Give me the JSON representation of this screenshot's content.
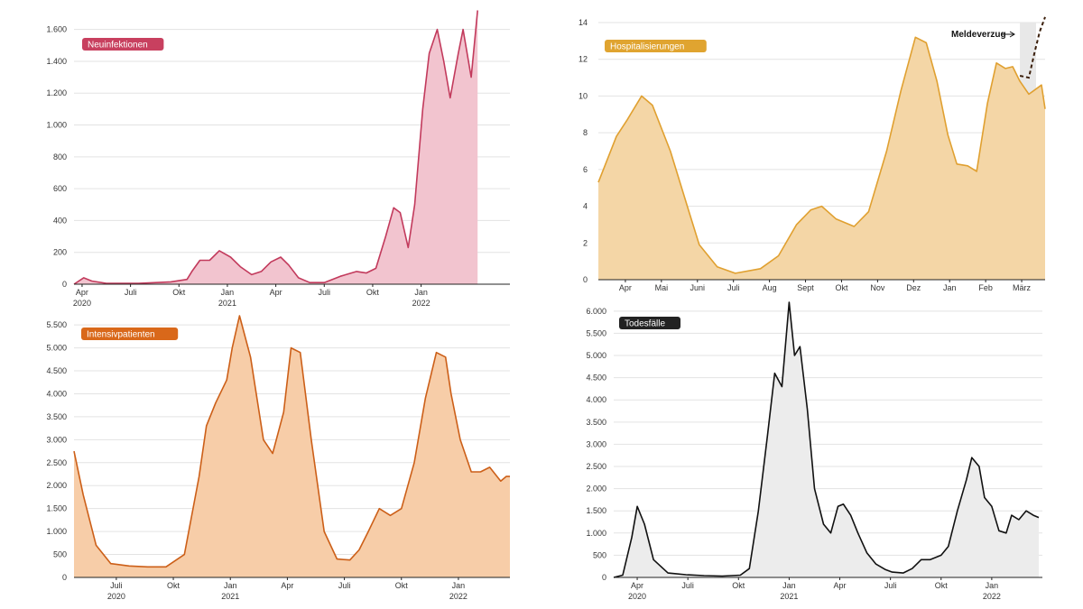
{
  "chart_data": [
    {
      "id": "neuinfektionen",
      "type": "area",
      "title": "Neuinfektionen",
      "label_bg": "#c8405f",
      "line_color": "#c23a5c",
      "fill_color": "#f2c4cf",
      "ylim": [
        0,
        1700
      ],
      "xlim": [
        0,
        27
      ],
      "yticks": [
        0,
        200,
        400,
        600,
        800,
        1000,
        1200,
        1400,
        1600
      ],
      "ytick_labels": [
        "0",
        "200",
        "400",
        "600",
        "800",
        "1.000",
        "1.200",
        "1.400",
        "1.600"
      ],
      "xticks": [
        {
          "x": 0.5,
          "label": "Apr",
          "sub": "2020"
        },
        {
          "x": 3.5,
          "label": "Juli",
          "sub": ""
        },
        {
          "x": 6.5,
          "label": "Okt",
          "sub": ""
        },
        {
          "x": 9.5,
          "label": "Jan",
          "sub": "2021"
        },
        {
          "x": 12.5,
          "label": "Apr",
          "sub": ""
        },
        {
          "x": 15.5,
          "label": "Juli",
          "sub": ""
        },
        {
          "x": 18.5,
          "label": "Okt",
          "sub": ""
        },
        {
          "x": 21.5,
          "label": "Jan",
          "sub": "2022"
        }
      ],
      "x": [
        0,
        0.6,
        1.1,
        2,
        4,
        6,
        7,
        7.3,
        7.8,
        8.4,
        9,
        9.7,
        10.3,
        11,
        11.6,
        12.2,
        12.8,
        13.3,
        13.9,
        14.6,
        15.5,
        16.5,
        17.5,
        18.1,
        18.7,
        19.3,
        19.8,
        20.2,
        20.7,
        21.1,
        21.6,
        22,
        22.5,
        22.9,
        23.3,
        23.8,
        24.1,
        24.6,
        25
      ],
      "y": [
        0,
        40,
        20,
        5,
        5,
        15,
        30,
        80,
        150,
        150,
        210,
        170,
        110,
        60,
        80,
        140,
        170,
        120,
        40,
        10,
        10,
        50,
        80,
        70,
        100,
        300,
        480,
        450,
        230,
        500,
        1100,
        1450,
        1600,
        1400,
        1170,
        1450,
        1600,
        1300,
        1720
      ],
      "annotation": ""
    },
    {
      "id": "hospitalisierungen",
      "type": "area",
      "title": "Hospitalisierungen",
      "label_bg": "#e0a430",
      "line_color": "#e0a030",
      "fill_color": "#f4d6a6",
      "ylim": [
        0,
        14
      ],
      "xlim": [
        0,
        12.4
      ],
      "yticks": [
        0,
        2,
        4,
        6,
        8,
        10,
        12,
        14
      ],
      "ytick_labels": [
        "0",
        "2",
        "4",
        "6",
        "8",
        "10",
        "12",
        "14"
      ],
      "xticks": [
        {
          "x": 0.75,
          "label": "Apr",
          "sub": ""
        },
        {
          "x": 1.75,
          "label": "Mai",
          "sub": ""
        },
        {
          "x": 2.75,
          "label": "Juni",
          "sub": ""
        },
        {
          "x": 3.75,
          "label": "Juli",
          "sub": ""
        },
        {
          "x": 4.75,
          "label": "Aug",
          "sub": ""
        },
        {
          "x": 5.75,
          "label": "Sept",
          "sub": ""
        },
        {
          "x": 6.75,
          "label": "Okt",
          "sub": ""
        },
        {
          "x": 7.75,
          "label": "Nov",
          "sub": ""
        },
        {
          "x": 8.75,
          "label": "Dez",
          "sub": ""
        },
        {
          "x": 9.75,
          "label": "Jan",
          "sub": ""
        },
        {
          "x": 10.75,
          "label": "Feb",
          "sub": ""
        },
        {
          "x": 11.75,
          "label": "März",
          "sub": ""
        }
      ],
      "x": [
        0,
        0.5,
        0.8,
        1.2,
        1.5,
        2,
        2.5,
        2.8,
        3.3,
        3.8,
        4.5,
        5,
        5.5,
        5.9,
        6.2,
        6.6,
        7.1,
        7.5,
        8,
        8.4,
        8.8,
        9.1,
        9.4,
        9.7,
        9.95,
        10.25,
        10.5,
        10.8,
        11.05,
        11.3,
        11.5,
        11.7,
        11.95,
        12.3,
        12.4
      ],
      "y": [
        5.3,
        7.8,
        8.7,
        10,
        9.5,
        7,
        3.8,
        1.9,
        0.7,
        0.35,
        0.6,
        1.3,
        3,
        3.8,
        4,
        3.3,
        2.9,
        3.7,
        7,
        10.3,
        13.2,
        12.9,
        10.8,
        7.9,
        6.3,
        6.2,
        5.9,
        9.6,
        11.8,
        11.5,
        11.6,
        10.8,
        10.1,
        10.6,
        9.3
      ],
      "delay_x": [
        11.7,
        11.95,
        12.1,
        12.25,
        12.4
      ],
      "delay_y": [
        11.1,
        11.0,
        12.3,
        13.5,
        14.3
      ],
      "shade_from_x": 11.7,
      "annotation": "Meldeverzug"
    },
    {
      "id": "intensivpatienten",
      "type": "area",
      "title": "Intensivpatienten",
      "label_bg": "#d9681a",
      "line_color": "#cc5f18",
      "fill_color": "#f7cda8",
      "ylim": [
        0,
        5700
      ],
      "xlim": [
        0,
        23.7
      ],
      "yticks": [
        0,
        500,
        1000,
        1500,
        2000,
        2500,
        3000,
        3500,
        4000,
        4500,
        5000,
        5500
      ],
      "ytick_labels": [
        "0",
        "500",
        "1.000",
        "1.500",
        "2.000",
        "2.500",
        "3.000",
        "3.500",
        "4.000",
        "4.500",
        "5.000",
        "5.500"
      ],
      "xticks": [
        {
          "x": 2.3,
          "label": "Juli",
          "sub": "2020"
        },
        {
          "x": 5.4,
          "label": "Okt",
          "sub": ""
        },
        {
          "x": 8.5,
          "label": "Jan",
          "sub": "2021"
        },
        {
          "x": 11.6,
          "label": "Apr",
          "sub": ""
        },
        {
          "x": 14.7,
          "label": "Juli",
          "sub": ""
        },
        {
          "x": 17.8,
          "label": "Okt",
          "sub": ""
        },
        {
          "x": 20.9,
          "label": "Jan",
          "sub": "2022"
        }
      ],
      "x": [
        0,
        0.5,
        1.2,
        2,
        3,
        4,
        5,
        6,
        6.8,
        7.2,
        7.7,
        8.3,
        8.6,
        9,
        9.6,
        10.3,
        10.8,
        11.4,
        11.8,
        12.3,
        12.9,
        13.6,
        14.3,
        15,
        15.5,
        16,
        16.6,
        17.2,
        17.8,
        18.5,
        19.1,
        19.7,
        20.2,
        20.5,
        21,
        21.6,
        22.1,
        22.6,
        23.2,
        23.5,
        23.7
      ],
      "y": [
        2750,
        1800,
        700,
        300,
        250,
        230,
        230,
        500,
        2200,
        3300,
        3800,
        4300,
        5000,
        5700,
        4800,
        3000,
        2700,
        3600,
        5000,
        4900,
        3000,
        1000,
        400,
        380,
        600,
        1000,
        1500,
        1350,
        1500,
        2500,
        3900,
        4900,
        4800,
        4000,
        3000,
        2300,
        2300,
        2400,
        2100,
        2200,
        2200
      ],
      "annotation": ""
    },
    {
      "id": "todesfaelle",
      "type": "area",
      "title": "Todesfälle",
      "label_bg": "#222222",
      "line_color": "#111111",
      "fill_color": "#ececec",
      "ylim": [
        0,
        6200
      ],
      "xlim": [
        0,
        23.7
      ],
      "yticks": [
        0,
        500,
        1000,
        1500,
        2000,
        2500,
        3000,
        3500,
        4000,
        4500,
        5000,
        5500,
        6000
      ],
      "ytick_labels": [
        "0",
        "500",
        "1.000",
        "1.500",
        "2.000",
        "2.500",
        "3.000",
        "3.500",
        "4.000",
        "4.500",
        "5.000",
        "5.500",
        "6.000"
      ],
      "xticks": [
        {
          "x": 1.3,
          "label": "Apr",
          "sub": "2020"
        },
        {
          "x": 4.1,
          "label": "Juli",
          "sub": ""
        },
        {
          "x": 6.9,
          "label": "Okt",
          "sub": ""
        },
        {
          "x": 9.7,
          "label": "Jan",
          "sub": "2021"
        },
        {
          "x": 12.5,
          "label": "Apr",
          "sub": ""
        },
        {
          "x": 15.3,
          "label": "Juli",
          "sub": ""
        },
        {
          "x": 18.1,
          "label": "Okt",
          "sub": ""
        },
        {
          "x": 20.9,
          "label": "Jan",
          "sub": "2022"
        }
      ],
      "x": [
        0,
        0.5,
        1,
        1.3,
        1.7,
        2.2,
        3,
        4,
        5,
        6,
        7,
        7.5,
        8,
        8.5,
        8.9,
        9.3,
        9.7,
        10,
        10.3,
        10.7,
        11.1,
        11.6,
        12,
        12.4,
        12.7,
        13.1,
        13.5,
        14,
        14.5,
        15,
        15.4,
        16,
        16.5,
        17,
        17.5,
        18.1,
        18.5,
        19,
        19.5,
        19.8,
        20.2,
        20.5,
        20.9,
        21.3,
        21.7,
        22,
        22.4,
        22.8,
        23.2,
        23.5
      ],
      "y": [
        0,
        50,
        900,
        1600,
        1200,
        400,
        100,
        60,
        40,
        30,
        50,
        200,
        1500,
        3200,
        4600,
        4300,
        6200,
        5000,
        5200,
        3800,
        2000,
        1200,
        1000,
        1600,
        1650,
        1400,
        1000,
        550,
        300,
        180,
        120,
        100,
        200,
        400,
        400,
        500,
        700,
        1500,
        2200,
        2700,
        2500,
        1800,
        1600,
        1050,
        1000,
        1400,
        1300,
        1500,
        1400,
        1350
      ],
      "annotation": ""
    }
  ]
}
